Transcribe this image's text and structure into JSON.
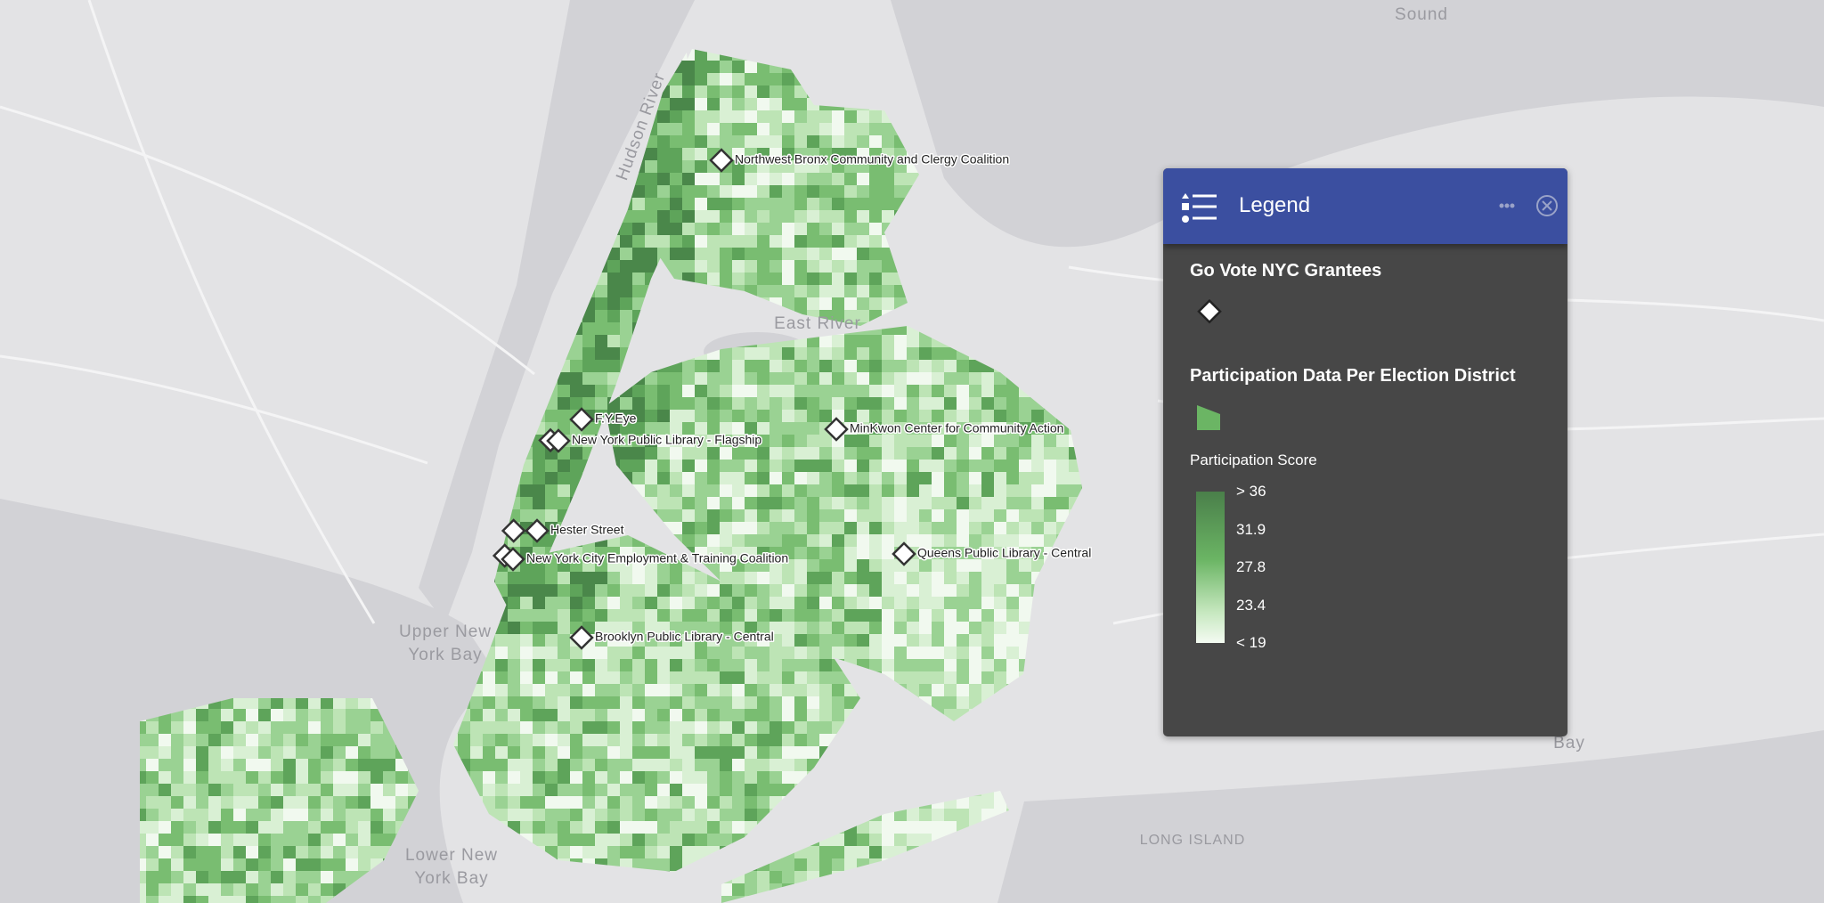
{
  "map_labels": [
    "Sound",
    "Hudson River",
    "East River",
    "Upper New",
    "York Bay",
    "Lower New",
    "York Bay",
    "LONG ISLAND",
    "Bay"
  ],
  "grantees": [
    {
      "label": "Northwest Bronx Community and Clergy Coalition"
    },
    {
      "label": "F.Y.Eye"
    },
    {
      "label": "New York Public Library - Flagship"
    },
    {
      "label": "MinKwon Center for Community Action"
    },
    {
      "label": "Hester Street"
    },
    {
      "label": "New York City Employment & Training Coalition"
    },
    {
      "label": "Queens Public Library - Central"
    },
    {
      "label": "Brooklyn Public Library - Central"
    }
  ],
  "legend": {
    "title": "Legend",
    "layers": [
      {
        "title": "Go Vote NYC Grantees"
      },
      {
        "title": "Participation Data Per Election District",
        "field": "Participation Score",
        "stops": [
          "> 36",
          "31.9",
          "27.8",
          "23.4",
          "< 19"
        ]
      }
    ]
  }
}
